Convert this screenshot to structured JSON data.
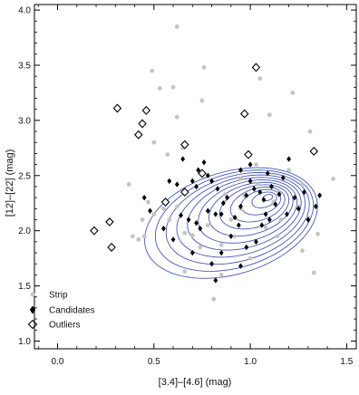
{
  "chart_data": {
    "type": "scatter",
    "xlabel": "[3.4]–[4.6] (mag)",
    "ylabel": "[12]–[22] (mag)",
    "xlim": [
      -0.12,
      1.55
    ],
    "ylim": [
      0.93,
      4.05
    ],
    "xticks": [
      "0.0",
      "0.5",
      "1.0",
      "1.5"
    ],
    "yticks": [
      "1.0",
      "1.5",
      "2.0",
      "2.5",
      "3.0",
      "3.5",
      "4.0"
    ],
    "xtick_values": [
      0.0,
      0.5,
      1.0,
      1.5
    ],
    "ytick_values": [
      1.0,
      1.5,
      2.0,
      2.5,
      3.0,
      3.5,
      4.0
    ],
    "legend_position": "bottom-left",
    "series": [
      {
        "name": "Strip",
        "marker": "grey-dot",
        "color": "#c4c4c4",
        "points": [
          [
            0.62,
            3.85
          ],
          [
            0.49,
            3.45
          ],
          [
            0.53,
            3.29
          ],
          [
            0.6,
            3.3
          ],
          [
            0.75,
            3.18
          ],
          [
            0.62,
            3.03
          ],
          [
            0.5,
            2.8
          ],
          [
            0.57,
            2.69
          ],
          [
            0.65,
            2.75
          ],
          [
            0.37,
            2.42
          ],
          [
            0.47,
            2.26
          ],
          [
            0.5,
            2.15
          ],
          [
            0.44,
            2.1
          ],
          [
            0.55,
            2.2
          ],
          [
            0.58,
            2.1
          ],
          [
            0.62,
            2.22
          ],
          [
            0.66,
            1.98
          ],
          [
            0.7,
            1.96
          ],
          [
            0.78,
            2.05
          ],
          [
            0.74,
            1.85
          ],
          [
            0.85,
            1.87
          ],
          [
            0.9,
            2.1
          ],
          [
            0.95,
            2.2
          ],
          [
            0.92,
            1.95
          ],
          [
            0.97,
            2.32
          ],
          [
            1.04,
            2.42
          ],
          [
            1.12,
            2.26
          ],
          [
            1.08,
            2.03
          ],
          [
            1.15,
            2.35
          ],
          [
            1.2,
            2.55
          ],
          [
            1.25,
            2.22
          ],
          [
            1.3,
            2.12
          ],
          [
            1.27,
            1.82
          ],
          [
            1.35,
            1.97
          ],
          [
            1.43,
            2.47
          ],
          [
            1.31,
            2.9
          ],
          [
            1.22,
            3.25
          ],
          [
            1.1,
            3.05
          ],
          [
            1.05,
            3.38
          ],
          [
            1.33,
            1.62
          ],
          [
            0.81,
            1.38
          ],
          [
            0.85,
            1.6
          ],
          [
            0.66,
            1.63
          ],
          [
            0.39,
            1.95
          ],
          [
            0.42,
            1.92
          ],
          [
            0.45,
            1.95
          ],
          [
            0.76,
            3.48
          ],
          [
            1.27,
            2.42
          ],
          [
            1.16,
            2.1
          ],
          [
            0.95,
            2.47
          ],
          [
            0.87,
            2.33
          ],
          [
            1.03,
            2.6
          ],
          [
            1.14,
            1.95
          ],
          [
            1.0,
            1.75
          ]
        ]
      },
      {
        "name": "Candidates",
        "marker": "filled-diamond",
        "color": "#000000",
        "points": [
          [
            0.65,
            2.65
          ],
          [
            0.58,
            2.45
          ],
          [
            0.62,
            2.42
          ],
          [
            0.7,
            2.45
          ],
          [
            0.72,
            2.4
          ],
          [
            0.73,
            2.55
          ],
          [
            0.78,
            2.5
          ],
          [
            0.8,
            2.45
          ],
          [
            0.83,
            2.38
          ],
          [
            0.76,
            2.62
          ],
          [
            0.45,
            2.3
          ],
          [
            0.48,
            2.18
          ],
          [
            0.64,
            2.14
          ],
          [
            0.68,
            2.1
          ],
          [
            0.72,
            2.07
          ],
          [
            0.74,
            2.02
          ],
          [
            0.78,
            2.18
          ],
          [
            0.82,
            2.15
          ],
          [
            0.86,
            2.25
          ],
          [
            0.88,
            2.3
          ],
          [
            0.92,
            2.12
          ],
          [
            0.95,
            2.22
          ],
          [
            0.98,
            2.32
          ],
          [
            1.0,
            2.45
          ],
          [
            1.02,
            2.38
          ],
          [
            1.05,
            2.35
          ],
          [
            1.07,
            2.28
          ],
          [
            1.09,
            2.52
          ],
          [
            1.11,
            2.4
          ],
          [
            1.13,
            2.24
          ],
          [
            1.15,
            2.33
          ],
          [
            1.17,
            2.48
          ],
          [
            1.19,
            2.15
          ],
          [
            1.2,
            2.65
          ],
          [
            1.23,
            2.3
          ],
          [
            1.25,
            2.2
          ],
          [
            1.28,
            2.35
          ],
          [
            1.3,
            2.1
          ],
          [
            1.34,
            2.22
          ],
          [
            1.36,
            2.32
          ],
          [
            0.9,
            1.95
          ],
          [
            0.94,
            2.05
          ],
          [
            0.98,
            1.85
          ],
          [
            1.03,
            1.9
          ],
          [
            1.06,
            2.05
          ],
          [
            1.1,
            2.1
          ],
          [
            0.85,
            1.8
          ],
          [
            0.8,
            1.7
          ],
          [
            0.82,
            1.55
          ],
          [
            0.95,
            1.68
          ],
          [
            0.6,
            1.92
          ],
          [
            0.7,
            1.8
          ],
          [
            0.55,
            2.02
          ],
          [
            0.95,
            2.55
          ],
          [
            1.0,
            2.6
          ],
          [
            0.85,
            2.15
          ],
          [
            1.08,
            2.15
          ]
        ]
      },
      {
        "name": "Outliers",
        "marker": "open-diamond",
        "color": "#000000",
        "points": [
          [
            0.31,
            3.11
          ],
          [
            0.46,
            3.09
          ],
          [
            0.44,
            2.97
          ],
          [
            0.42,
            2.87
          ],
          [
            0.66,
            2.78
          ],
          [
            0.19,
            2.0
          ],
          [
            0.27,
            2.08
          ],
          [
            0.28,
            1.85
          ],
          [
            0.56,
            2.26
          ],
          [
            0.66,
            2.35
          ],
          [
            0.75,
            2.52
          ],
          [
            0.97,
            3.06
          ],
          [
            1.03,
            3.48
          ],
          [
            1.33,
            2.72
          ],
          [
            0.99,
            2.69
          ]
        ]
      }
    ]
  }
}
